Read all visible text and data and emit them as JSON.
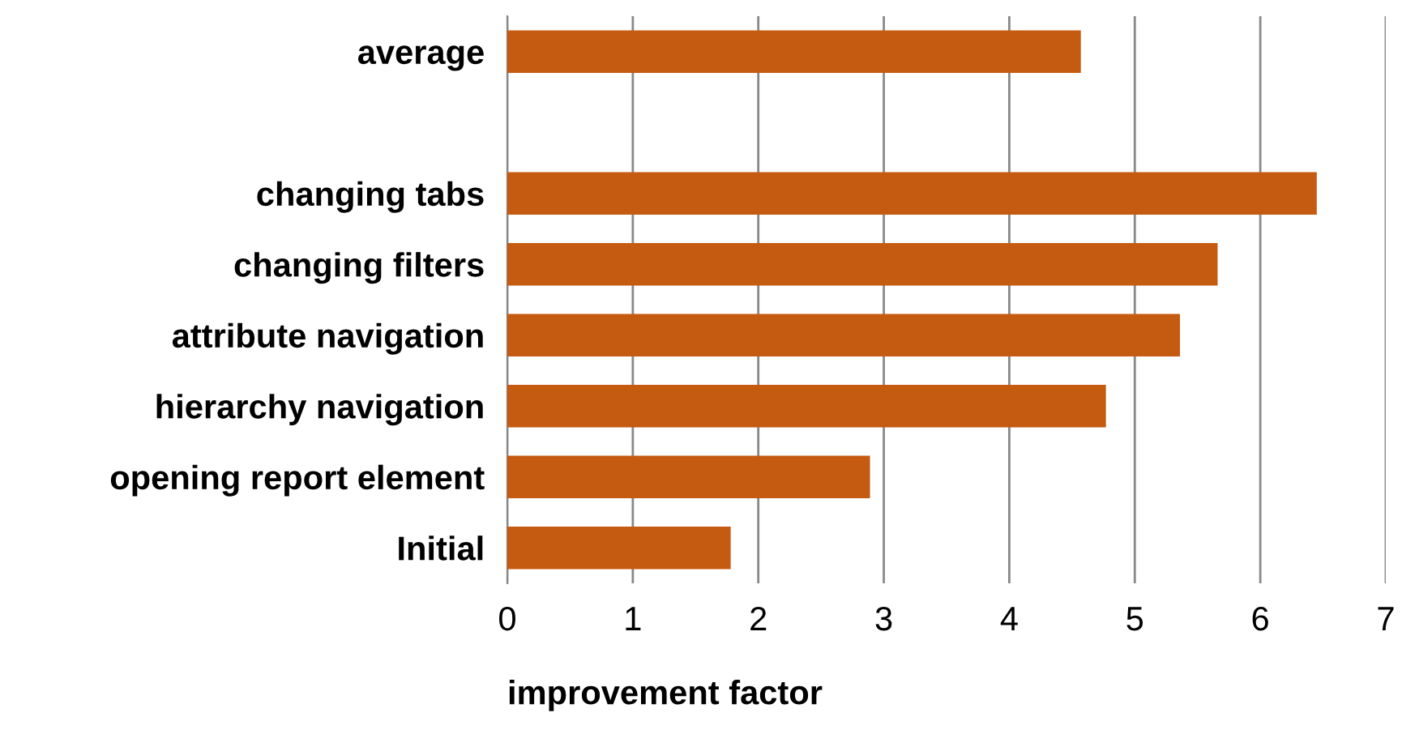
{
  "chart_data": {
    "type": "bar",
    "orientation": "horizontal",
    "categories": [
      "average",
      null,
      "changing tabs",
      "changing filters",
      "attribute navigation",
      "hierarchy navigation",
      "opening report element",
      "Initial"
    ],
    "values": [
      4.57,
      null,
      6.45,
      5.66,
      5.36,
      4.77,
      2.89,
      1.78
    ],
    "color": "#c55a11",
    "xlabel": "improvement factor",
    "xlim": [
      0,
      7
    ],
    "xticks": [
      0,
      1,
      2,
      3,
      4,
      5,
      6,
      7
    ],
    "grid": "x"
  }
}
